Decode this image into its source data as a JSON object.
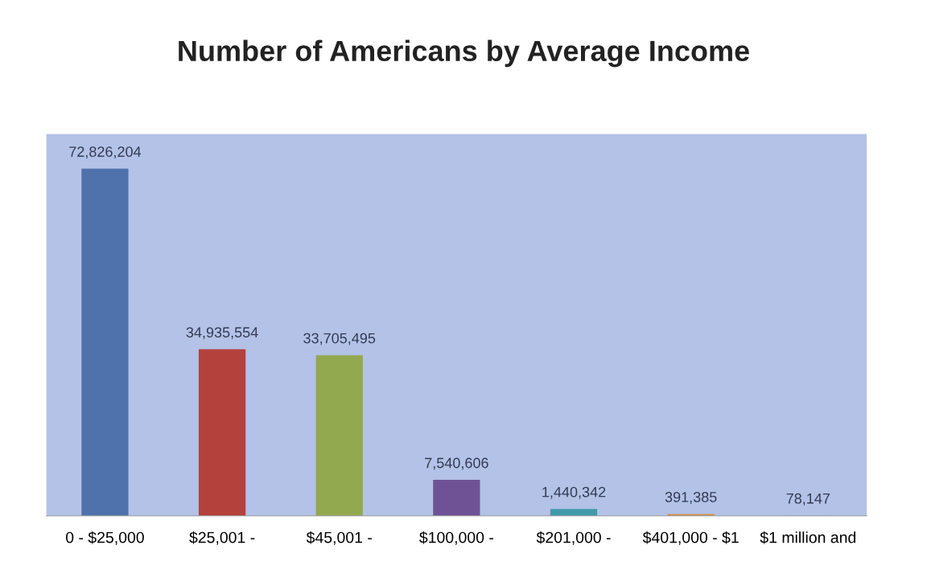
{
  "chart_data": {
    "type": "bar",
    "title": "Number of Americans by Average Income",
    "categories": [
      "0 - $25,000",
      "$25,001 -",
      "$45,001 -",
      "$100,000 -",
      "$201,000 -",
      "$401,000 - $1",
      "$1 million and"
    ],
    "values": [
      72826204,
      34935554,
      33705495,
      7540606,
      1440342,
      391385,
      78147
    ],
    "colors": [
      "#4f72ac",
      "#b5413d",
      "#93a94f",
      "#6f5296",
      "#3f9aa8",
      "#d98b42",
      "#8ea6d6"
    ],
    "value_labels": [
      "72,826,204",
      "34,935,554",
      "33,705,495",
      "7,540,606",
      "1,440,342",
      "391,385",
      "78,147"
    ],
    "relative": false,
    "grid": false,
    "legend": false
  }
}
